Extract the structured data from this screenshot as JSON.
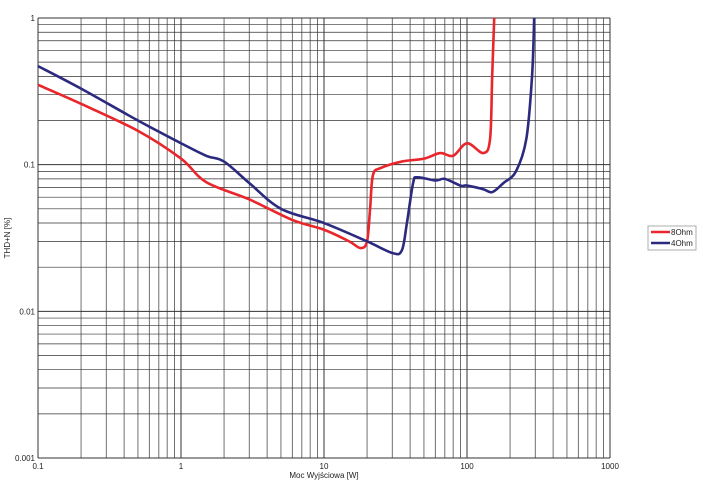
{
  "chart_data": {
    "type": "line",
    "title": "",
    "xlabel": "Moc Wyjściowa [W]",
    "ylabel": "THD+N [%]",
    "xscale": "log",
    "yscale": "log",
    "xlim": [
      0.1,
      1000
    ],
    "ylim": [
      0.001,
      1
    ],
    "grid": true,
    "legend": "right",
    "x_ticks": [
      "0.1",
      "1",
      "10",
      "100",
      "1000"
    ],
    "y_ticks": [
      "1",
      "0.1",
      "0.01",
      "0.001"
    ],
    "series": [
      {
        "name": "8Ohm",
        "color": "#e8262b",
        "points": [
          [
            0.1,
            0.35
          ],
          [
            0.2,
            0.26
          ],
          [
            0.5,
            0.17
          ],
          [
            1,
            0.11
          ],
          [
            1.5,
            0.076
          ],
          [
            3,
            0.058
          ],
          [
            6,
            0.042
          ],
          [
            10,
            0.036
          ],
          [
            15,
            0.03
          ],
          [
            18,
            0.027
          ],
          [
            20,
            0.03
          ],
          [
            21,
            0.05
          ],
          [
            22,
            0.085
          ],
          [
            25,
            0.095
          ],
          [
            35,
            0.105
          ],
          [
            50,
            0.11
          ],
          [
            65,
            0.12
          ],
          [
            80,
            0.115
          ],
          [
            100,
            0.14
          ],
          [
            130,
            0.12
          ],
          [
            145,
            0.15
          ],
          [
            150,
            0.4
          ],
          [
            155,
            1
          ]
        ]
      },
      {
        "name": "4Ohm",
        "color": "#2b2a7e",
        "points": [
          [
            0.1,
            0.47
          ],
          [
            0.2,
            0.33
          ],
          [
            0.5,
            0.2
          ],
          [
            1,
            0.14
          ],
          [
            1.5,
            0.115
          ],
          [
            2,
            0.105
          ],
          [
            3,
            0.075
          ],
          [
            5,
            0.05
          ],
          [
            10,
            0.04
          ],
          [
            20,
            0.03
          ],
          [
            30,
            0.025
          ],
          [
            35,
            0.026
          ],
          [
            38,
            0.04
          ],
          [
            42,
            0.075
          ],
          [
            45,
            0.082
          ],
          [
            60,
            0.078
          ],
          [
            70,
            0.08
          ],
          [
            90,
            0.072
          ],
          [
            100,
            0.072
          ],
          [
            130,
            0.068
          ],
          [
            150,
            0.065
          ],
          [
            180,
            0.075
          ],
          [
            220,
            0.09
          ],
          [
            260,
            0.15
          ],
          [
            285,
            0.4
          ],
          [
            295,
            1
          ]
        ]
      }
    ]
  }
}
